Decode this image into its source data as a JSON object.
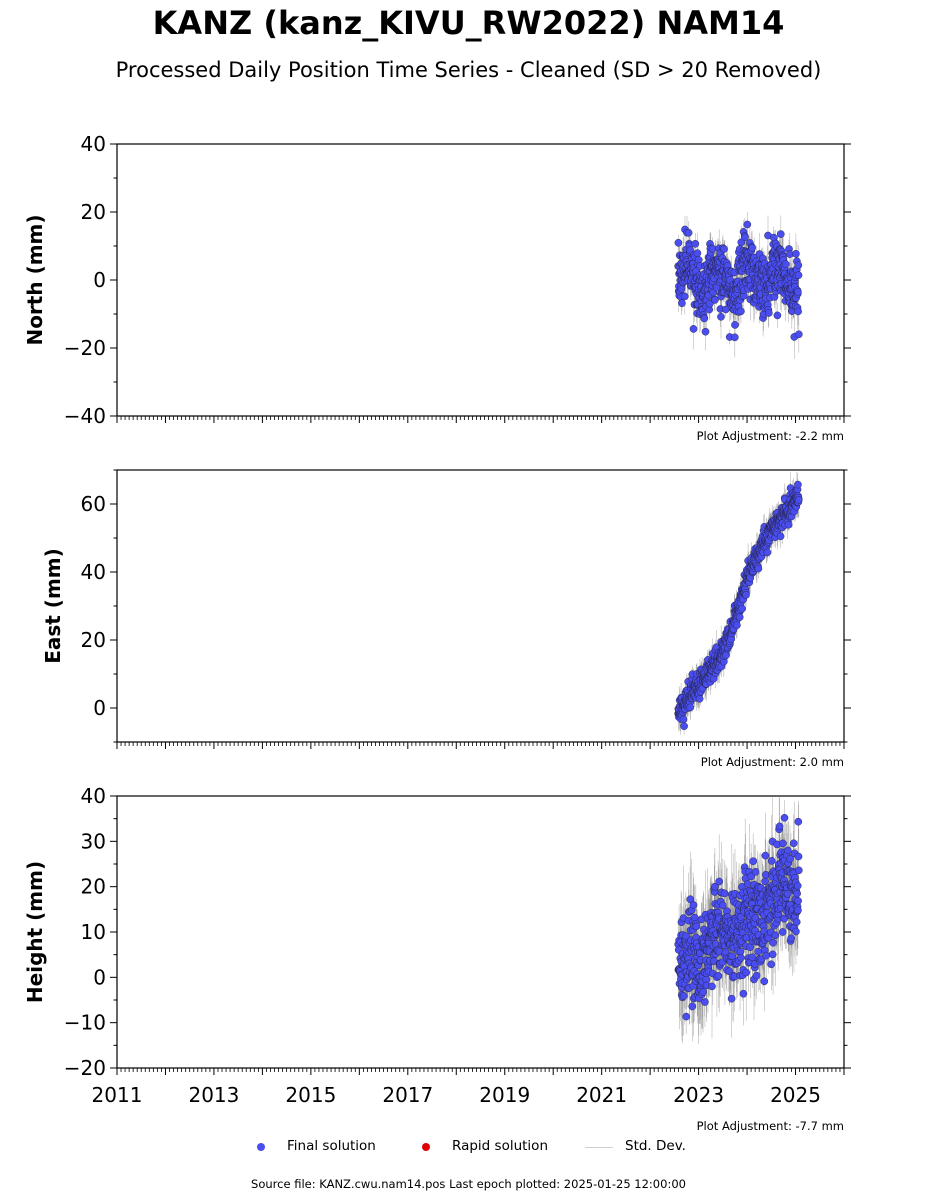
{
  "title": "KANZ (kanz_KIVU_RW2022) NAM14",
  "subtitle": "Processed Daily Position Time Series - Cleaned (SD > 20 Removed)",
  "chart_data": [
    {
      "type": "scatter",
      "panel": "north",
      "ylabel": "North (mm)",
      "ylim": [
        -40,
        40
      ],
      "yticks": [
        -40,
        -20,
        0,
        20,
        40
      ],
      "ytick_labels": [
        "−40",
        "−20",
        "0",
        "20",
        "40"
      ],
      "xlim": [
        2011.0,
        2026.0
      ],
      "adjustment": "Plot Adjustment: -2.2 mm",
      "series": [
        {
          "name": "Final solution",
          "color": "#4a4ef0",
          "trend": [
            [
              2022.6,
              0
            ],
            [
              2025.05,
              1
            ]
          ],
          "noise": 4.5,
          "seasonal": 4,
          "sd": 5
        }
      ]
    },
    {
      "type": "scatter",
      "panel": "east",
      "ylabel": "East (mm)",
      "ylim": [
        -10,
        70
      ],
      "yticks": [
        0,
        20,
        40,
        60
      ],
      "ytick_labels": [
        "0",
        "20",
        "40",
        "60"
      ],
      "xlim": [
        2011.0,
        2026.0
      ],
      "adjustment": "Plot Adjustment: 2.0 mm",
      "series": [
        {
          "name": "Final solution",
          "color": "#4a4ef0",
          "trend": [
            [
              2022.6,
              -1
            ],
            [
              2022.9,
              5
            ],
            [
              2023.3,
              12
            ],
            [
              2023.6,
              20
            ],
            [
              2024.0,
              38
            ],
            [
              2024.4,
              50
            ],
            [
              2024.7,
              56
            ],
            [
              2025.05,
              62
            ]
          ],
          "noise": 2.0,
          "seasonal": 0,
          "sd": 4
        }
      ]
    },
    {
      "type": "scatter",
      "panel": "height",
      "ylabel": "Height (mm)",
      "ylim": [
        -20,
        40
      ],
      "yticks": [
        -20,
        -10,
        0,
        10,
        20,
        30,
        40
      ],
      "ytick_labels": [
        "−20",
        "−10",
        "0",
        "10",
        "20",
        "30",
        "40"
      ],
      "xlim": [
        2011.0,
        2026.0
      ],
      "xticks": [
        2011,
        2013,
        2015,
        2017,
        2019,
        2021,
        2023,
        2025
      ],
      "xtick_labels": [
        "2011",
        "2013",
        "2015",
        "2017",
        "2019",
        "2021",
        "2023",
        "2025"
      ],
      "adjustment": "Plot Adjustment: -7.7 mm",
      "series": [
        {
          "name": "Final solution",
          "color": "#4a4ef0",
          "trend": [
            [
              2022.6,
              3
            ],
            [
              2023.5,
              8
            ],
            [
              2024.2,
              13
            ],
            [
              2024.7,
              20
            ],
            [
              2025.05,
              21
            ]
          ],
          "noise": 5.5,
          "seasonal": 2,
          "sd": 9
        }
      ]
    }
  ],
  "legend": {
    "final": "Final solution",
    "rapid": "Rapid solution",
    "stddev": "Std. Dev.",
    "final_color": "#4a4ef0",
    "rapid_color": "#e00000",
    "stddev_color": "#d0d0d0"
  },
  "footer": "Source file: KANZ.cwu.nam14.pos  Last epoch plotted: 2025-01-25 12:00:00"
}
